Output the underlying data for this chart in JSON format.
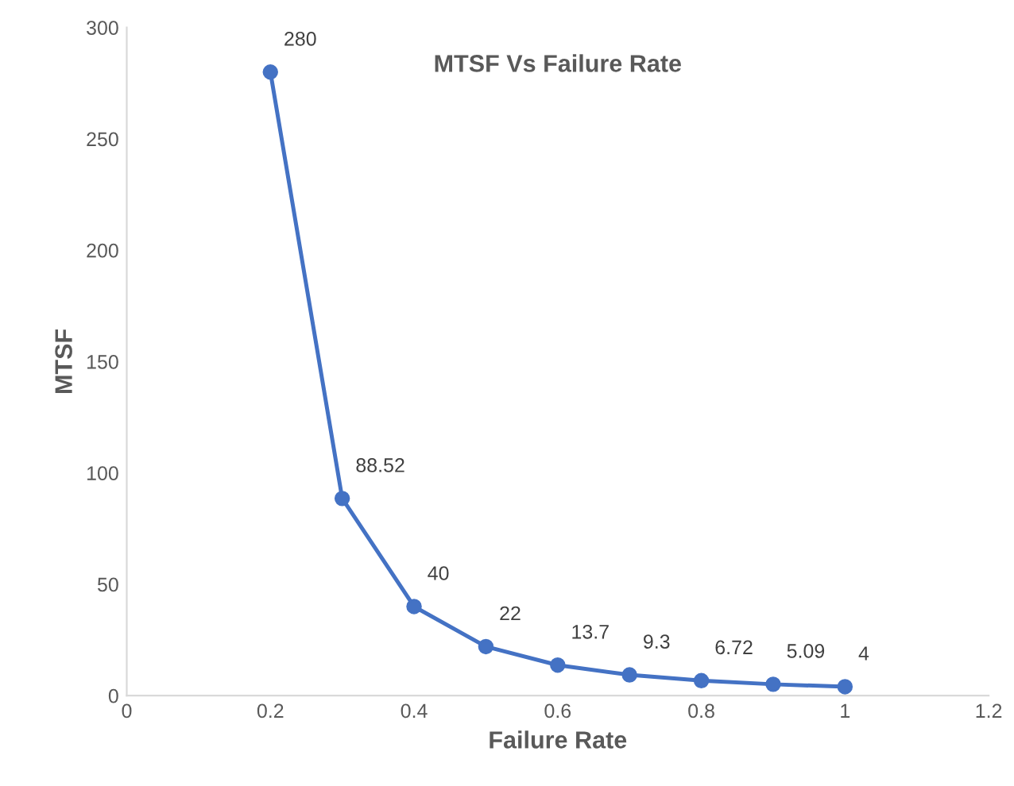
{
  "chart_data": {
    "type": "line",
    "title": "MTSF Vs Failure Rate",
    "xlabel": "Failure Rate",
    "ylabel": "MTSF",
    "x": [
      0.2,
      0.3,
      0.4,
      0.5,
      0.6,
      0.7,
      0.8,
      0.9,
      1.0
    ],
    "series": [
      {
        "color": "#4472c4",
        "values": [
          280,
          88.52,
          40,
          22,
          13.7,
          9.3,
          6.72,
          5.09,
          4
        ]
      }
    ],
    "xlim": [
      0,
      1.2
    ],
    "xticks": [
      0,
      0.2,
      0.4,
      0.6,
      0.8,
      1,
      1.2
    ],
    "ylim": [
      0,
      300
    ],
    "yticks": [
      0,
      50,
      100,
      150,
      200,
      250,
      300
    ],
    "marker": "circle",
    "line_style": "solid",
    "grid": false,
    "legend": false,
    "data_labels": true
  }
}
